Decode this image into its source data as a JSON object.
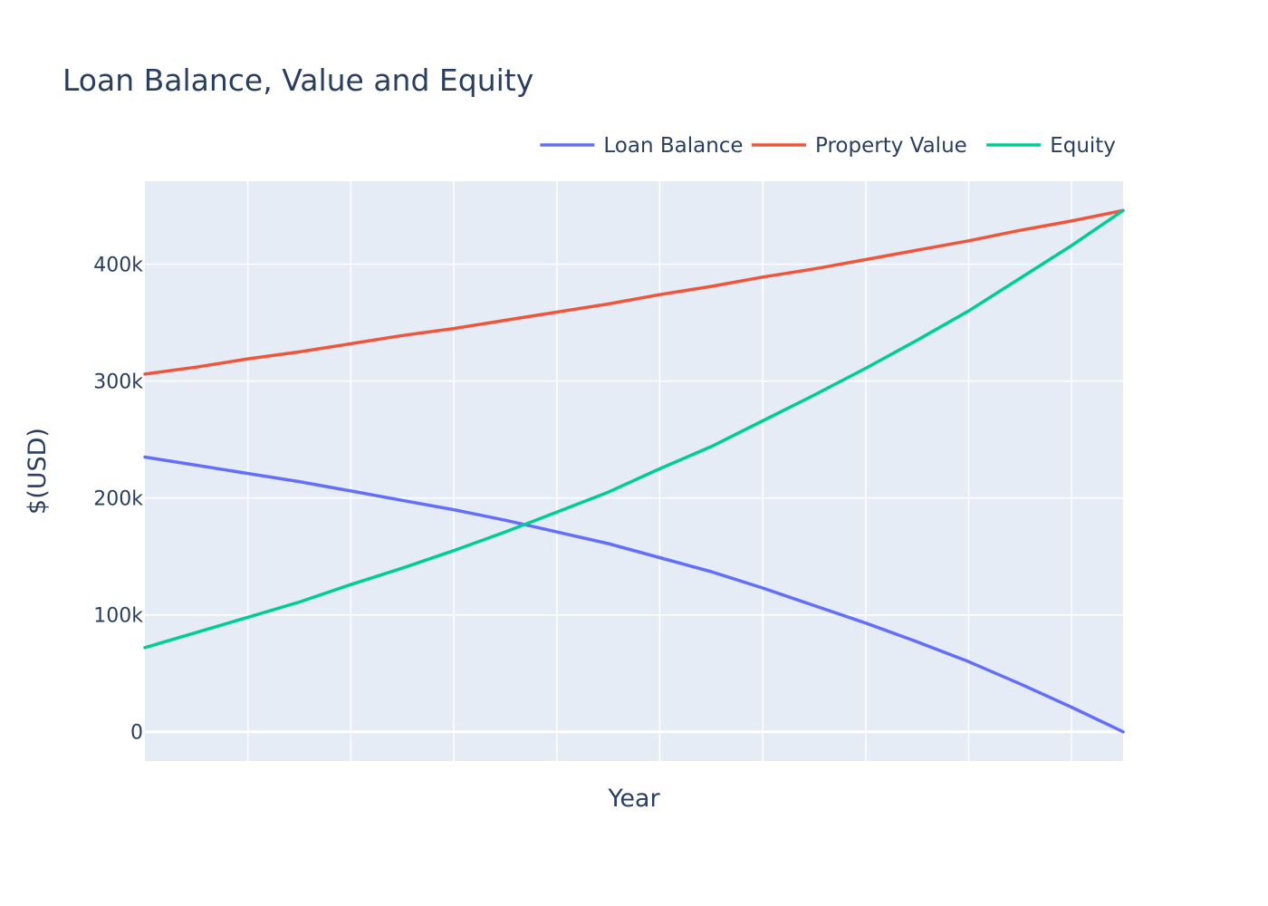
{
  "chart_data": {
    "type": "line",
    "title": "Loan Balance, Value and Equity",
    "xlabel": "Year",
    "ylabel": "$(USD)",
    "x": [
      0,
      1,
      2,
      3,
      4,
      5,
      6,
      7,
      8,
      9,
      10,
      11,
      12,
      13,
      14,
      15,
      16,
      17,
      18,
      19
    ],
    "xlim": [
      0,
      19
    ],
    "ylim": [
      -25000,
      471000
    ],
    "y_ticks": [
      {
        "value": 0,
        "label": "0"
      },
      {
        "value": 100000,
        "label": "100k"
      },
      {
        "value": 200000,
        "label": "200k"
      },
      {
        "value": 300000,
        "label": "300k"
      },
      {
        "value": 400000,
        "label": "400k"
      }
    ],
    "x_gridlines": [
      2,
      4,
      6,
      8,
      10,
      12,
      14,
      16,
      18
    ],
    "grid": true,
    "legend_position": "top-right",
    "background_color": "#e5ecf6",
    "series": [
      {
        "name": "Loan Balance",
        "color": "#636efa",
        "values": [
          235000,
          228000,
          221000,
          214000,
          206000,
          198000,
          190000,
          181000,
          171000,
          161000,
          149000,
          137000,
          123000,
          108000,
          93000,
          77000,
          60000,
          41000,
          21000,
          0
        ]
      },
      {
        "name": "Property Value",
        "color": "#ef553b",
        "values": [
          306000,
          312000,
          319000,
          325000,
          332000,
          339000,
          345000,
          352000,
          359000,
          366000,
          374000,
          381000,
          389000,
          396000,
          404000,
          412000,
          420000,
          429000,
          437000,
          446000
        ]
      },
      {
        "name": "Equity",
        "color": "#00cc96",
        "values": [
          72000,
          85000,
          98000,
          111000,
          126000,
          140000,
          155000,
          171000,
          188000,
          205000,
          225000,
          244000,
          266000,
          288000,
          311000,
          335000,
          360000,
          388000,
          416000,
          446000
        ]
      }
    ]
  }
}
